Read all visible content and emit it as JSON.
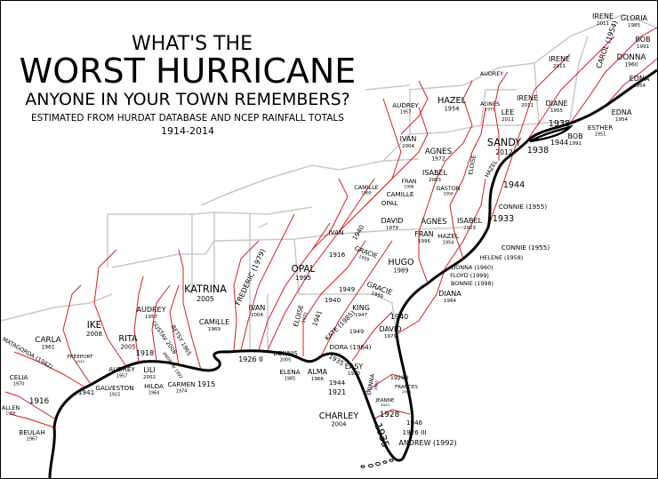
{
  "title": {
    "line1": "WHAT'S THE",
    "line2": "WORST HURRICANE",
    "line3": "ANYONE IN YOUR TOWN REMEMBERS?",
    "subtitle": "ESTIMATED FROM HURDAT DATABASE AND NCEP RAINFALL TOTALS",
    "years": "1914-2014"
  },
  "colors": {
    "tracks": "#d81e1e",
    "borders": "#c8c8c8",
    "coast": "#000000"
  },
  "labels": [
    {
      "name": "Irene",
      "year": "2011"
    },
    {
      "name": "Gloria",
      "year": "1985"
    },
    {
      "name": "Carol (1954)",
      "year": ""
    },
    {
      "name": "Bob",
      "year": "1991"
    },
    {
      "name": "Donna",
      "year": "1960"
    },
    {
      "name": "Edna",
      "year": "1954"
    },
    {
      "name": "Irene",
      "year": "2011"
    },
    {
      "name": "Audrey",
      "year": ""
    },
    {
      "name": "Hazel",
      "year": "1954"
    },
    {
      "name": "Agnes",
      "year": "1972"
    },
    {
      "name": "Irene",
      "year": "2011"
    },
    {
      "name": "Audrey",
      "year": "1957"
    },
    {
      "name": "Lee",
      "year": "2011"
    },
    {
      "name": "Diane",
      "year": "1955"
    },
    {
      "name": "1938",
      "year": ""
    },
    {
      "name": "Edna",
      "year": "1954"
    },
    {
      "name": "Esther",
      "year": "1951"
    },
    {
      "name": "Bob",
      "year": "1991"
    },
    {
      "name": "1944",
      "year": ""
    },
    {
      "name": "Sandy",
      "year": "2012"
    },
    {
      "name": "1938",
      "year": ""
    },
    {
      "name": "Ivan",
      "year": "2004"
    },
    {
      "name": "Agnes",
      "year": "1972"
    },
    {
      "name": "Eloise",
      "year": ""
    },
    {
      "name": "Hazel",
      "year": ""
    },
    {
      "name": "1944",
      "year": ""
    },
    {
      "name": "Isabel",
      "year": "2003"
    },
    {
      "name": "Fran",
      "year": "1996"
    },
    {
      "name": "Camille",
      "year": "1969"
    },
    {
      "name": "Camille",
      "year": ""
    },
    {
      "name": "Gaston",
      "year": "2004"
    },
    {
      "name": "Opal",
      "year": ""
    },
    {
      "name": "Connie (1955)",
      "year": ""
    },
    {
      "name": "David",
      "year": "1979"
    },
    {
      "name": "Agnes",
      "year": ""
    },
    {
      "name": "Isabel",
      "year": "2003"
    },
    {
      "name": "1933",
      "year": ""
    },
    {
      "name": "Fran",
      "year": "1996"
    },
    {
      "name": "Hazel",
      "year": "1954"
    },
    {
      "name": "Ivan",
      "year": ""
    },
    {
      "name": "1940",
      "year": ""
    },
    {
      "name": "Connie (1955)",
      "year": ""
    },
    {
      "name": "1916",
      "year": ""
    },
    {
      "name": "Gracie",
      "year": "1959"
    },
    {
      "name": "Helene (1958)",
      "year": ""
    },
    {
      "name": "Hugo",
      "year": "1989"
    },
    {
      "name": "Opal",
      "year": "1995"
    },
    {
      "name": "Donna (1960)",
      "year": ""
    },
    {
      "name": "Floyd (1999)",
      "year": ""
    },
    {
      "name": "Bonnie (1998)",
      "year": ""
    },
    {
      "name": "Diana",
      "year": "1984"
    },
    {
      "name": "1949",
      "year": ""
    },
    {
      "name": "Gracie",
      "year": "1959"
    },
    {
      "name": "1940",
      "year": ""
    },
    {
      "name": "King",
      "year": "1947"
    },
    {
      "name": "1940",
      "year": ""
    },
    {
      "name": "David",
      "year": "1979"
    },
    {
      "name": "Eloise",
      "year": "1975"
    },
    {
      "name": "1941",
      "year": ""
    },
    {
      "name": "Kate (1985)",
      "year": ""
    },
    {
      "name": "1949",
      "year": ""
    },
    {
      "name": "Dora (1964)",
      "year": ""
    },
    {
      "name": "1935",
      "year": ""
    },
    {
      "name": "Easy",
      "year": "1950"
    },
    {
      "name": "Elena",
      "year": "1985"
    },
    {
      "name": "Alma",
      "year": "1966"
    },
    {
      "name": "1944",
      "year": ""
    },
    {
      "name": "1921",
      "year": ""
    },
    {
      "name": "Donna",
      "year": "1960"
    },
    {
      "name": "1926 I",
      "year": ""
    },
    {
      "name": "Frances",
      "year": "2004"
    },
    {
      "name": "Jeanne",
      "year": "2004"
    },
    {
      "name": "1928",
      "year": ""
    },
    {
      "name": "Charley",
      "year": "2004"
    },
    {
      "name": "1935",
      "year": ""
    },
    {
      "name": "1946",
      "year": ""
    },
    {
      "name": "1926 III",
      "year": ""
    },
    {
      "name": "Andrew (1992)",
      "year": ""
    },
    {
      "name": "Katrina",
      "year": "2005"
    },
    {
      "name": "Frederic (1979)",
      "year": ""
    },
    {
      "name": "Ivan",
      "year": "2004"
    },
    {
      "name": "Camille",
      "year": "1969"
    },
    {
      "name": "1926 II",
      "year": ""
    },
    {
      "name": "Dennis",
      "year": "2005"
    },
    {
      "name": "Audrey",
      "year": "1957"
    },
    {
      "name": "Rita",
      "year": "2005"
    },
    {
      "name": "Gustav 2008",
      "year": ""
    },
    {
      "name": "Betsy 1965",
      "year": ""
    },
    {
      "name": "Andrew 1992",
      "year": ""
    },
    {
      "name": "1918",
      "year": ""
    },
    {
      "name": "Ike",
      "year": "2008"
    },
    {
      "name": "Freeport",
      "year": "1932"
    },
    {
      "name": "Audrey",
      "year": "1957"
    },
    {
      "name": "Lili",
      "year": "2002"
    },
    {
      "name": "Hilda",
      "year": "1964"
    },
    {
      "name": "Carmen",
      "year": "1974"
    },
    {
      "name": "1915",
      "year": ""
    },
    {
      "name": "Galveston",
      "year": "1915"
    },
    {
      "name": "1941",
      "year": ""
    },
    {
      "name": "Carla",
      "year": "1961"
    },
    {
      "name": "Matagorda (1942)",
      "year": ""
    },
    {
      "name": "Celia",
      "year": "1970"
    },
    {
      "name": "1916",
      "year": ""
    },
    {
      "name": "Allen",
      "year": "1980"
    },
    {
      "name": "Beulah",
      "year": "1967"
    }
  ]
}
